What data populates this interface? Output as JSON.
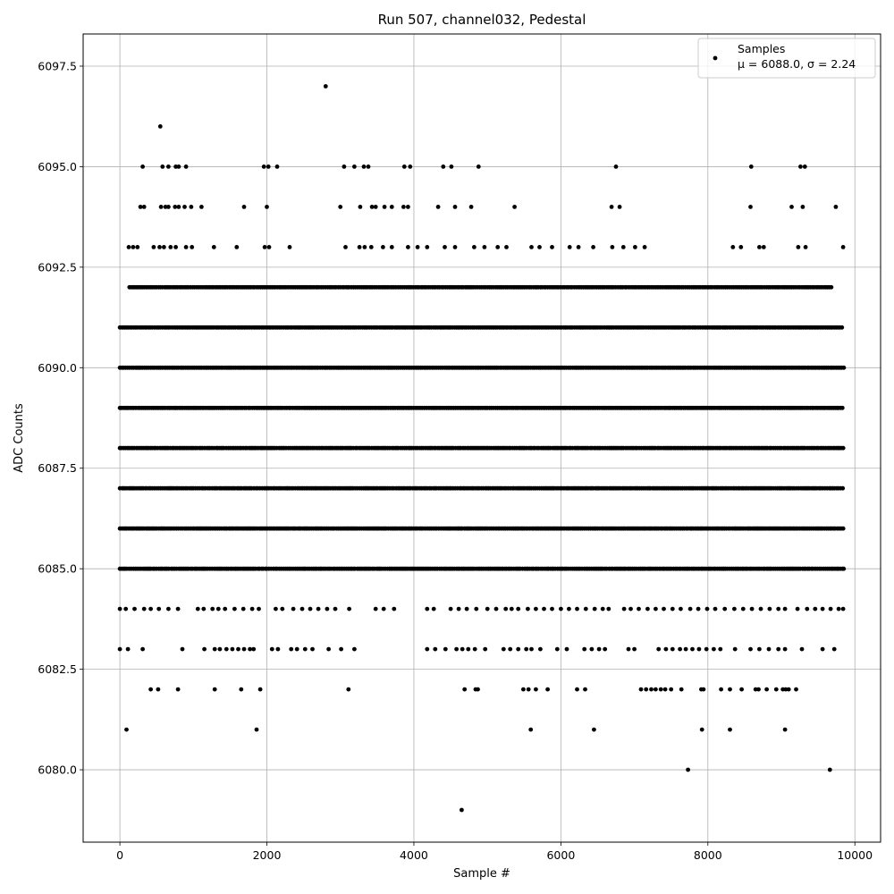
{
  "chart_data": {
    "type": "scatter",
    "title": "Run 507, channel032, Pedestal",
    "xlabel": "Sample #",
    "ylabel": "ADC Counts",
    "xlim": [
      -500,
      10350
    ],
    "ylim": [
      6078.2,
      6098.3
    ],
    "xticks": [
      0,
      2000,
      4000,
      6000,
      8000,
      10000
    ],
    "xtick_labels": [
      "0",
      "2000",
      "4000",
      "6000",
      "8000",
      "10000"
    ],
    "yticks": [
      6080.0,
      6082.5,
      6085.0,
      6087.5,
      6090.0,
      6092.5,
      6095.0,
      6097.5
    ],
    "ytick_labels": [
      "6080.0",
      "6082.5",
      "6085.0",
      "6087.5",
      "6090.0",
      "6092.5",
      "6095.0",
      "6097.5"
    ],
    "grid": true,
    "marker_color": "#000000",
    "legend": {
      "position": "top-right",
      "entries": [
        "Samples",
        "μ = 6088.0, σ = 2.24"
      ]
    },
    "statistics": {
      "mean": 6088.0,
      "std": 2.24
    },
    "dense_levels": [
      {
        "y": 6085,
        "x_start": 0,
        "x_end": 9850
      },
      {
        "y": 6086,
        "x_start": 0,
        "x_end": 9850
      },
      {
        "y": 6087,
        "x_start": 0,
        "x_end": 9850
      },
      {
        "y": 6088,
        "x_start": 0,
        "x_end": 9850
      },
      {
        "y": 6089,
        "x_start": 0,
        "x_end": 9850
      },
      {
        "y": 6090,
        "x_start": 0,
        "x_end": 9850
      },
      {
        "y": 6091,
        "x_start": 0,
        "x_end": 9850
      },
      {
        "y": 6092,
        "x_start": 130,
        "x_end": 9700
      }
    ],
    "sparse_points": [
      {
        "x": 2800,
        "y": 6097
      },
      {
        "x": 550,
        "y": 6096
      },
      {
        "x": 310,
        "y": 6095
      },
      {
        "x": 580,
        "y": 6095
      },
      {
        "x": 660,
        "y": 6095
      },
      {
        "x": 760,
        "y": 6095
      },
      {
        "x": 800,
        "y": 6095
      },
      {
        "x": 900,
        "y": 6095
      },
      {
        "x": 1960,
        "y": 6095
      },
      {
        "x": 2020,
        "y": 6095
      },
      {
        "x": 2140,
        "y": 6095
      },
      {
        "x": 3050,
        "y": 6095
      },
      {
        "x": 3190,
        "y": 6095
      },
      {
        "x": 3320,
        "y": 6095
      },
      {
        "x": 3380,
        "y": 6095
      },
      {
        "x": 3870,
        "y": 6095
      },
      {
        "x": 3950,
        "y": 6095
      },
      {
        "x": 4400,
        "y": 6095
      },
      {
        "x": 4510,
        "y": 6095
      },
      {
        "x": 4880,
        "y": 6095
      },
      {
        "x": 6750,
        "y": 6095
      },
      {
        "x": 8590,
        "y": 6095
      },
      {
        "x": 9260,
        "y": 6095
      },
      {
        "x": 9320,
        "y": 6095
      },
      {
        "x": 280,
        "y": 6094
      },
      {
        "x": 330,
        "y": 6094
      },
      {
        "x": 560,
        "y": 6094
      },
      {
        "x": 620,
        "y": 6094
      },
      {
        "x": 660,
        "y": 6094
      },
      {
        "x": 750,
        "y": 6094
      },
      {
        "x": 800,
        "y": 6094
      },
      {
        "x": 880,
        "y": 6094
      },
      {
        "x": 970,
        "y": 6094
      },
      {
        "x": 1110,
        "y": 6094
      },
      {
        "x": 1690,
        "y": 6094
      },
      {
        "x": 2000,
        "y": 6094
      },
      {
        "x": 3000,
        "y": 6094
      },
      {
        "x": 3270,
        "y": 6094
      },
      {
        "x": 3430,
        "y": 6094
      },
      {
        "x": 3480,
        "y": 6094
      },
      {
        "x": 3600,
        "y": 6094
      },
      {
        "x": 3700,
        "y": 6094
      },
      {
        "x": 3860,
        "y": 6094
      },
      {
        "x": 3920,
        "y": 6094
      },
      {
        "x": 4330,
        "y": 6094
      },
      {
        "x": 4560,
        "y": 6094
      },
      {
        "x": 4780,
        "y": 6094
      },
      {
        "x": 5370,
        "y": 6094
      },
      {
        "x": 6690,
        "y": 6094
      },
      {
        "x": 6800,
        "y": 6094
      },
      {
        "x": 8580,
        "y": 6094
      },
      {
        "x": 9140,
        "y": 6094
      },
      {
        "x": 9290,
        "y": 6094
      },
      {
        "x": 9740,
        "y": 6094
      },
      {
        "x": 120,
        "y": 6093
      },
      {
        "x": 180,
        "y": 6093
      },
      {
        "x": 240,
        "y": 6093
      },
      {
        "x": 460,
        "y": 6093
      },
      {
        "x": 540,
        "y": 6093
      },
      {
        "x": 600,
        "y": 6093
      },
      {
        "x": 690,
        "y": 6093
      },
      {
        "x": 760,
        "y": 6093
      },
      {
        "x": 900,
        "y": 6093
      },
      {
        "x": 980,
        "y": 6093
      },
      {
        "x": 1280,
        "y": 6093
      },
      {
        "x": 1590,
        "y": 6093
      },
      {
        "x": 1970,
        "y": 6093
      },
      {
        "x": 2030,
        "y": 6093
      },
      {
        "x": 2310,
        "y": 6093
      },
      {
        "x": 3070,
        "y": 6093
      },
      {
        "x": 3260,
        "y": 6093
      },
      {
        "x": 3330,
        "y": 6093
      },
      {
        "x": 3420,
        "y": 6093
      },
      {
        "x": 3580,
        "y": 6093
      },
      {
        "x": 3700,
        "y": 6093
      },
      {
        "x": 3920,
        "y": 6093
      },
      {
        "x": 4050,
        "y": 6093
      },
      {
        "x": 4180,
        "y": 6093
      },
      {
        "x": 4420,
        "y": 6093
      },
      {
        "x": 4560,
        "y": 6093
      },
      {
        "x": 4820,
        "y": 6093
      },
      {
        "x": 4960,
        "y": 6093
      },
      {
        "x": 5140,
        "y": 6093
      },
      {
        "x": 5260,
        "y": 6093
      },
      {
        "x": 5600,
        "y": 6093
      },
      {
        "x": 5710,
        "y": 6093
      },
      {
        "x": 5880,
        "y": 6093
      },
      {
        "x": 6120,
        "y": 6093
      },
      {
        "x": 6240,
        "y": 6093
      },
      {
        "x": 6440,
        "y": 6093
      },
      {
        "x": 6700,
        "y": 6093
      },
      {
        "x": 6850,
        "y": 6093
      },
      {
        "x": 7010,
        "y": 6093
      },
      {
        "x": 7140,
        "y": 6093
      },
      {
        "x": 8340,
        "y": 6093
      },
      {
        "x": 8450,
        "y": 6093
      },
      {
        "x": 8700,
        "y": 6093
      },
      {
        "x": 8760,
        "y": 6093
      },
      {
        "x": 9230,
        "y": 6093
      },
      {
        "x": 9330,
        "y": 6093
      },
      {
        "x": 9840,
        "y": 6093
      },
      {
        "x": 0,
        "y": 6084
      },
      {
        "x": 80,
        "y": 6084
      },
      {
        "x": 200,
        "y": 6084
      },
      {
        "x": 330,
        "y": 6084
      },
      {
        "x": 420,
        "y": 6084
      },
      {
        "x": 530,
        "y": 6084
      },
      {
        "x": 660,
        "y": 6084
      },
      {
        "x": 790,
        "y": 6084
      },
      {
        "x": 1060,
        "y": 6084
      },
      {
        "x": 1140,
        "y": 6084
      },
      {
        "x": 1260,
        "y": 6084
      },
      {
        "x": 1340,
        "y": 6084
      },
      {
        "x": 1430,
        "y": 6084
      },
      {
        "x": 1560,
        "y": 6084
      },
      {
        "x": 1680,
        "y": 6084
      },
      {
        "x": 1800,
        "y": 6084
      },
      {
        "x": 1890,
        "y": 6084
      },
      {
        "x": 2120,
        "y": 6084
      },
      {
        "x": 2210,
        "y": 6084
      },
      {
        "x": 2360,
        "y": 6084
      },
      {
        "x": 2480,
        "y": 6084
      },
      {
        "x": 2590,
        "y": 6084
      },
      {
        "x": 2700,
        "y": 6084
      },
      {
        "x": 2820,
        "y": 6084
      },
      {
        "x": 2930,
        "y": 6084
      },
      {
        "x": 3120,
        "y": 6084
      },
      {
        "x": 3480,
        "y": 6084
      },
      {
        "x": 3590,
        "y": 6084
      },
      {
        "x": 3730,
        "y": 6084
      },
      {
        "x": 4180,
        "y": 6084
      },
      {
        "x": 4270,
        "y": 6084
      },
      {
        "x": 4500,
        "y": 6084
      },
      {
        "x": 4610,
        "y": 6084
      },
      {
        "x": 4720,
        "y": 6084
      },
      {
        "x": 4850,
        "y": 6084
      },
      {
        "x": 5000,
        "y": 6084
      },
      {
        "x": 5120,
        "y": 6084
      },
      {
        "x": 5250,
        "y": 6084
      },
      {
        "x": 5330,
        "y": 6084
      },
      {
        "x": 5420,
        "y": 6084
      },
      {
        "x": 5550,
        "y": 6084
      },
      {
        "x": 5660,
        "y": 6084
      },
      {
        "x": 5770,
        "y": 6084
      },
      {
        "x": 5880,
        "y": 6084
      },
      {
        "x": 6000,
        "y": 6084
      },
      {
        "x": 6110,
        "y": 6084
      },
      {
        "x": 6220,
        "y": 6084
      },
      {
        "x": 6340,
        "y": 6084
      },
      {
        "x": 6460,
        "y": 6084
      },
      {
        "x": 6570,
        "y": 6084
      },
      {
        "x": 6650,
        "y": 6084
      },
      {
        "x": 6860,
        "y": 6084
      },
      {
        "x": 6950,
        "y": 6084
      },
      {
        "x": 7060,
        "y": 6084
      },
      {
        "x": 7180,
        "y": 6084
      },
      {
        "x": 7290,
        "y": 6084
      },
      {
        "x": 7400,
        "y": 6084
      },
      {
        "x": 7520,
        "y": 6084
      },
      {
        "x": 7630,
        "y": 6084
      },
      {
        "x": 7760,
        "y": 6084
      },
      {
        "x": 7870,
        "y": 6084
      },
      {
        "x": 7990,
        "y": 6084
      },
      {
        "x": 8100,
        "y": 6084
      },
      {
        "x": 8230,
        "y": 6084
      },
      {
        "x": 8360,
        "y": 6084
      },
      {
        "x": 8480,
        "y": 6084
      },
      {
        "x": 8600,
        "y": 6084
      },
      {
        "x": 8720,
        "y": 6084
      },
      {
        "x": 8840,
        "y": 6084
      },
      {
        "x": 8960,
        "y": 6084
      },
      {
        "x": 9050,
        "y": 6084
      },
      {
        "x": 9220,
        "y": 6084
      },
      {
        "x": 9350,
        "y": 6084
      },
      {
        "x": 9460,
        "y": 6084
      },
      {
        "x": 9560,
        "y": 6084
      },
      {
        "x": 9670,
        "y": 6084
      },
      {
        "x": 9780,
        "y": 6084
      },
      {
        "x": 9840,
        "y": 6084
      },
      {
        "x": 0,
        "y": 6083
      },
      {
        "x": 110,
        "y": 6083
      },
      {
        "x": 310,
        "y": 6083
      },
      {
        "x": 850,
        "y": 6083
      },
      {
        "x": 1150,
        "y": 6083
      },
      {
        "x": 1290,
        "y": 6083
      },
      {
        "x": 1360,
        "y": 6083
      },
      {
        "x": 1450,
        "y": 6083
      },
      {
        "x": 1530,
        "y": 6083
      },
      {
        "x": 1610,
        "y": 6083
      },
      {
        "x": 1690,
        "y": 6083
      },
      {
        "x": 1770,
        "y": 6083
      },
      {
        "x": 1820,
        "y": 6083
      },
      {
        "x": 2070,
        "y": 6083
      },
      {
        "x": 2150,
        "y": 6083
      },
      {
        "x": 2330,
        "y": 6083
      },
      {
        "x": 2410,
        "y": 6083
      },
      {
        "x": 2520,
        "y": 6083
      },
      {
        "x": 2620,
        "y": 6083
      },
      {
        "x": 2840,
        "y": 6083
      },
      {
        "x": 3010,
        "y": 6083
      },
      {
        "x": 3190,
        "y": 6083
      },
      {
        "x": 4180,
        "y": 6083
      },
      {
        "x": 4290,
        "y": 6083
      },
      {
        "x": 4430,
        "y": 6083
      },
      {
        "x": 4580,
        "y": 6083
      },
      {
        "x": 4660,
        "y": 6083
      },
      {
        "x": 4740,
        "y": 6083
      },
      {
        "x": 4830,
        "y": 6083
      },
      {
        "x": 4970,
        "y": 6083
      },
      {
        "x": 5220,
        "y": 6083
      },
      {
        "x": 5310,
        "y": 6083
      },
      {
        "x": 5420,
        "y": 6083
      },
      {
        "x": 5530,
        "y": 6083
      },
      {
        "x": 5600,
        "y": 6083
      },
      {
        "x": 5720,
        "y": 6083
      },
      {
        "x": 5950,
        "y": 6083
      },
      {
        "x": 6080,
        "y": 6083
      },
      {
        "x": 6320,
        "y": 6083
      },
      {
        "x": 6420,
        "y": 6083
      },
      {
        "x": 6520,
        "y": 6083
      },
      {
        "x": 6600,
        "y": 6083
      },
      {
        "x": 6920,
        "y": 6083
      },
      {
        "x": 7000,
        "y": 6083
      },
      {
        "x": 7330,
        "y": 6083
      },
      {
        "x": 7430,
        "y": 6083
      },
      {
        "x": 7520,
        "y": 6083
      },
      {
        "x": 7620,
        "y": 6083
      },
      {
        "x": 7700,
        "y": 6083
      },
      {
        "x": 7790,
        "y": 6083
      },
      {
        "x": 7880,
        "y": 6083
      },
      {
        "x": 7980,
        "y": 6083
      },
      {
        "x": 8080,
        "y": 6083
      },
      {
        "x": 8170,
        "y": 6083
      },
      {
        "x": 8370,
        "y": 6083
      },
      {
        "x": 8580,
        "y": 6083
      },
      {
        "x": 8700,
        "y": 6083
      },
      {
        "x": 8830,
        "y": 6083
      },
      {
        "x": 8960,
        "y": 6083
      },
      {
        "x": 9050,
        "y": 6083
      },
      {
        "x": 9280,
        "y": 6083
      },
      {
        "x": 9560,
        "y": 6083
      },
      {
        "x": 9720,
        "y": 6083
      },
      {
        "x": 420,
        "y": 6082
      },
      {
        "x": 520,
        "y": 6082
      },
      {
        "x": 790,
        "y": 6082
      },
      {
        "x": 1290,
        "y": 6082
      },
      {
        "x": 1650,
        "y": 6082
      },
      {
        "x": 1910,
        "y": 6082
      },
      {
        "x": 3110,
        "y": 6082
      },
      {
        "x": 4690,
        "y": 6082
      },
      {
        "x": 4840,
        "y": 6082
      },
      {
        "x": 4870,
        "y": 6082
      },
      {
        "x": 5490,
        "y": 6082
      },
      {
        "x": 5560,
        "y": 6082
      },
      {
        "x": 5660,
        "y": 6082
      },
      {
        "x": 5820,
        "y": 6082
      },
      {
        "x": 6220,
        "y": 6082
      },
      {
        "x": 6330,
        "y": 6082
      },
      {
        "x": 7090,
        "y": 6082
      },
      {
        "x": 7160,
        "y": 6082
      },
      {
        "x": 7230,
        "y": 6082
      },
      {
        "x": 7290,
        "y": 6082
      },
      {
        "x": 7360,
        "y": 6082
      },
      {
        "x": 7420,
        "y": 6082
      },
      {
        "x": 7500,
        "y": 6082
      },
      {
        "x": 7640,
        "y": 6082
      },
      {
        "x": 7910,
        "y": 6082
      },
      {
        "x": 7940,
        "y": 6082
      },
      {
        "x": 8180,
        "y": 6082
      },
      {
        "x": 8300,
        "y": 6082
      },
      {
        "x": 8460,
        "y": 6082
      },
      {
        "x": 8650,
        "y": 6082
      },
      {
        "x": 8690,
        "y": 6082
      },
      {
        "x": 8800,
        "y": 6082
      },
      {
        "x": 8930,
        "y": 6082
      },
      {
        "x": 9020,
        "y": 6082
      },
      {
        "x": 9060,
        "y": 6082
      },
      {
        "x": 9100,
        "y": 6082
      },
      {
        "x": 9200,
        "y": 6082
      },
      {
        "x": 90,
        "y": 6081
      },
      {
        "x": 1860,
        "y": 6081
      },
      {
        "x": 5590,
        "y": 6081
      },
      {
        "x": 6450,
        "y": 6081
      },
      {
        "x": 7920,
        "y": 6081
      },
      {
        "x": 8300,
        "y": 6081
      },
      {
        "x": 9050,
        "y": 6081
      },
      {
        "x": 7730,
        "y": 6080
      },
      {
        "x": 9660,
        "y": 6080
      },
      {
        "x": 4650,
        "y": 6079
      }
    ]
  }
}
